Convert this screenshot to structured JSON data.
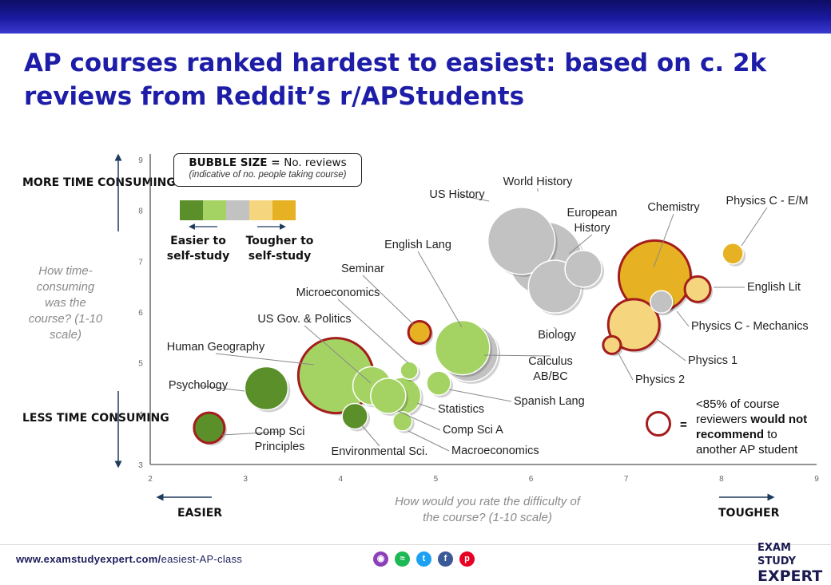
{
  "header": {
    "title": "AP courses ranked hardest to easiest: based on c. 2k reviews from Reddit’s r/APStudents"
  },
  "side_labels": {
    "more_time": "MORE TIME CONSUMING",
    "less_time": "LESS TIME CONSUMING",
    "y_question": "How time-consuming was the course? (1-10 scale)",
    "easier": "EASIER",
    "tougher": "TOUGHER",
    "x_question": "How would you rate the difficulty of the course? (1-10 scale)"
  },
  "legend": {
    "bubble_size_bold": "BUBBLE SIZE = ",
    "bubble_size_text": "No. reviews",
    "bubble_size_note": "(indicative of no. people taking course)",
    "swatch_colors": [
      "#5b8f29",
      "#a4d364",
      "#c2c2c2",
      "#f5d67e",
      "#e6b223"
    ],
    "easier_label": "Easier to self-study",
    "tougher_label": "Tougher to self-study",
    "red_ring_equals": "=",
    "red_ring_line1": "<85% of course",
    "red_ring_line2_a": "reviewers ",
    "red_ring_line2_b": "would not",
    "red_ring_line3_a": "recommend",
    "red_ring_line3_b": " to",
    "red_ring_line4": "another AP student"
  },
  "footer": {
    "url_bold": "www.examstudyexpert.com/",
    "url_rest": "easiest-AP-class",
    "social_icons": [
      "podcast-icon",
      "spotify-icon",
      "twitter-icon",
      "facebook-icon",
      "pinterest-icon"
    ],
    "brand_line1": "EXAM STUDY",
    "brand_line2": "EXPERT"
  },
  "chart_data": {
    "type": "scatter",
    "xlim": [
      2,
      9
    ],
    "ylim": [
      3,
      9
    ],
    "x_ticks": [
      "2",
      "3",
      "4",
      "5",
      "6",
      "7",
      "8",
      "9"
    ],
    "y_ticks": [
      "3",
      "4",
      "5",
      "6",
      "7",
      "8",
      "9"
    ],
    "colors": {
      "dark_green": "#5b8f29",
      "light_green": "#a4d364",
      "grey": "#c2c2c2",
      "light_yellow": "#f5d67e",
      "gold": "#e6b223",
      "red_ring": "#a51c1c"
    },
    "points": [
      {
        "label": "World History",
        "x": 5.9,
        "y": 7.4,
        "r": 42,
        "color": "grey",
        "red": false
      },
      {
        "label": "US History",
        "x": 6.15,
        "y": 7.05,
        "r": 46,
        "color": "grey",
        "red": false
      },
      {
        "label": "European History",
        "x": 6.55,
        "y": 6.85,
        "r": 23,
        "color": "grey",
        "red": false
      },
      {
        "label": "Biology",
        "x": 6.25,
        "y": 6.5,
        "r": 33,
        "color": "grey",
        "red": false
      },
      {
        "label": "Chemistry",
        "x": 7.3,
        "y": 6.7,
        "r": 45,
        "color": "gold",
        "red": true
      },
      {
        "label": "Physics C - E/M",
        "x": 8.12,
        "y": 7.15,
        "r": 13,
        "color": "gold",
        "red": false
      },
      {
        "label": "English Lit",
        "x": 7.75,
        "y": 6.45,
        "r": 16,
        "color": "light_yellow",
        "red": true
      },
      {
        "label": "Physics C - Mechanics",
        "x": 7.37,
        "y": 6.2,
        "r": 14,
        "color": "grey",
        "red": false
      },
      {
        "label": "Physics 1",
        "x": 7.08,
        "y": 5.75,
        "r": 32,
        "color": "light_yellow",
        "red": true
      },
      {
        "label": "Physics 2",
        "x": 6.85,
        "y": 5.35,
        "r": 11,
        "color": "light_yellow",
        "red": true
      },
      {
        "label": "English Lang",
        "x": 5.35,
        "y": 5.2,
        "r": 36,
        "color": "grey",
        "red": false
      },
      {
        "label": "Calculus AB/BC",
        "x": 5.28,
        "y": 5.3,
        "r": 34,
        "color": "light_green",
        "red": false
      },
      {
        "label": "Spanish Lang",
        "x": 5.03,
        "y": 4.6,
        "r": 15,
        "color": "light_green",
        "red": false
      },
      {
        "label": "Seminar",
        "x": 4.83,
        "y": 5.6,
        "r": 14,
        "color": "gold",
        "red": true
      },
      {
        "label": "Microeconomics",
        "x": 4.72,
        "y": 4.85,
        "r": 11,
        "color": "light_green",
        "red": false
      },
      {
        "label": "Statistics",
        "x": 4.65,
        "y": 4.35,
        "r": 23,
        "color": "light_green",
        "red": false
      },
      {
        "label": "Macroeconomics",
        "x": 4.65,
        "y": 3.85,
        "r": 12,
        "color": "light_green",
        "red": false
      },
      {
        "label": "Comp Sci A",
        "x": 4.5,
        "y": 4.35,
        "r": 22,
        "color": "light_green",
        "red": false
      },
      {
        "label": "US Gov. & Politics",
        "x": 4.33,
        "y": 4.55,
        "r": 24,
        "color": "light_green",
        "red": false
      },
      {
        "label": "Environmental Sci.",
        "x": 4.15,
        "y": 3.95,
        "r": 16,
        "color": "dark_green",
        "red": false
      },
      {
        "label": "Human Geography",
        "x": 3.95,
        "y": 4.75,
        "r": 47,
        "color": "light_green",
        "red": true
      },
      {
        "label": "Psychology",
        "x": 3.22,
        "y": 4.5,
        "r": 27,
        "color": "dark_green",
        "red": false
      },
      {
        "label": "Comp Sci Principles",
        "x": 2.62,
        "y": 3.72,
        "r": 19,
        "color": "dark_green",
        "red": true
      }
    ]
  }
}
